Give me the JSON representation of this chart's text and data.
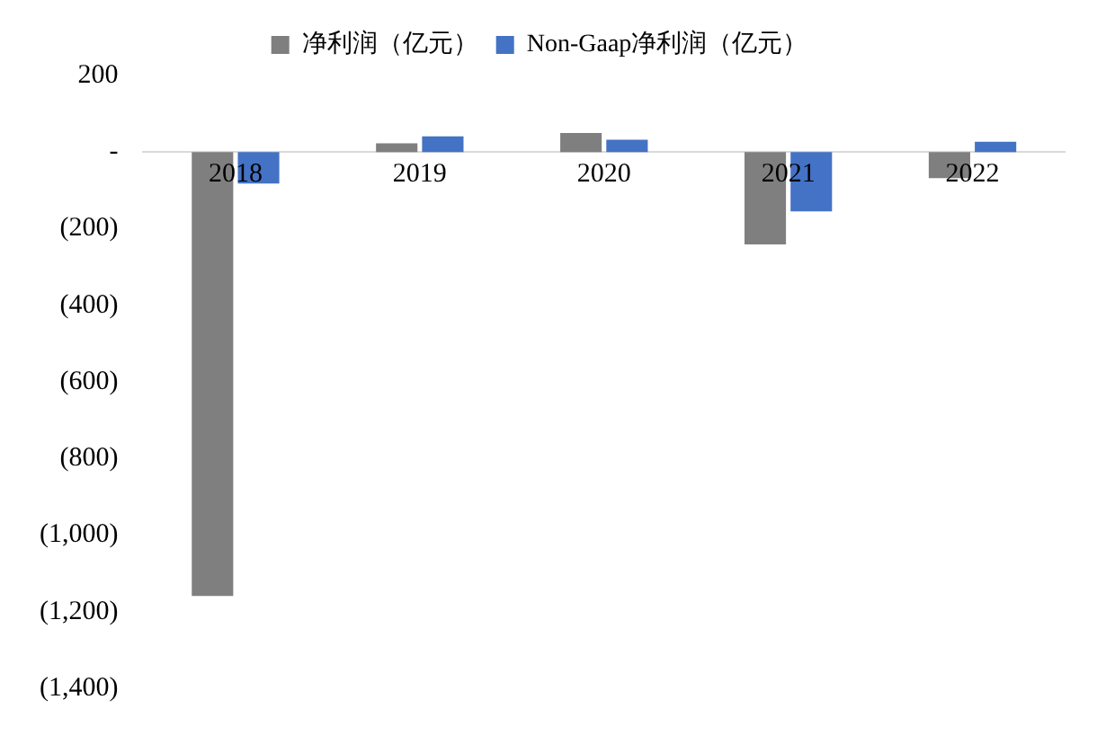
{
  "chart_data": {
    "type": "bar",
    "categories": [
      "2018",
      "2019",
      "2020",
      "2021",
      "2022"
    ],
    "series": [
      {
        "name": "净利润（亿元）",
        "color": "#7f7f7f",
        "values": [
          -1159,
          23,
          50,
          -241,
          -68
        ]
      },
      {
        "name": "Non-Gaap净利润（亿元）",
        "color": "#4472c4",
        "values": [
          -82,
          41,
          32,
          -155,
          27
        ]
      }
    ],
    "ylim": [
      -1400,
      200
    ],
    "yticks": [
      {
        "value": -1400,
        "label": "(1,400)"
      },
      {
        "value": -1200,
        "label": "(1,200)"
      },
      {
        "value": -1000,
        "label": "(1,000)"
      },
      {
        "value": -800,
        "label": "(800)"
      },
      {
        "value": -600,
        "label": "(600)"
      },
      {
        "value": -400,
        "label": "(400)"
      },
      {
        "value": -200,
        "label": "(200)"
      },
      {
        "value": 0,
        "label": "-"
      },
      200
    ],
    "grid": false,
    "legend": "top"
  }
}
